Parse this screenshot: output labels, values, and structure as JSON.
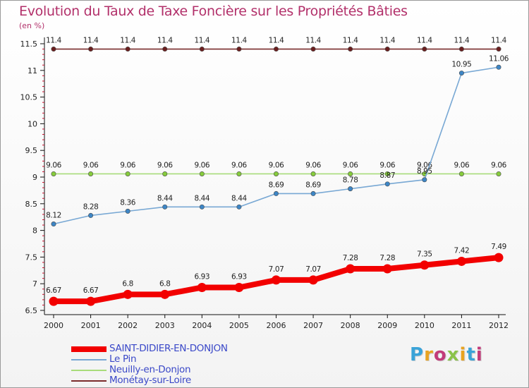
{
  "title": "Evolution du Taux de Taxe Foncière sur les Propriétés Bâties",
  "unit": "(en %)",
  "brand": {
    "text": "Proxiti",
    "colors": [
      "#3aa3d8",
      "#e8a321",
      "#c23b7a",
      "#8bc34a",
      "#e8a321",
      "#3aa3d8",
      "#c23b7a"
    ]
  },
  "chart_data": {
    "type": "line",
    "title": "Evolution du Taux de Taxe Foncière sur les Propriétés Bâties",
    "ylabel": "(en %)",
    "xlabel": "",
    "ylim": [
      6.5,
      11.5
    ],
    "yticks": [
      "6.5",
      "7",
      "7.5",
      "8",
      "8.5",
      "9",
      "9.5",
      "10",
      "10.5",
      "11",
      "11.5"
    ],
    "categories": [
      "2000",
      "2001",
      "2002",
      "2003",
      "2004",
      "2005",
      "2006",
      "2007",
      "2008",
      "2009",
      "2010",
      "2011",
      "2012"
    ],
    "legend_position": "bottom-left",
    "series": [
      {
        "name": "Monétay-sur-Loire",
        "color": "#7a2c2c",
        "point_color": "#6b1f1f",
        "labels": [
          "11.4",
          "11.4",
          "11.4",
          "11.4",
          "11.4",
          "11.4",
          "11.4",
          "11.4",
          "11.4",
          "11.4",
          "11.4",
          "11.4",
          "11.4"
        ],
        "values": [
          11.4,
          11.4,
          11.4,
          11.4,
          11.4,
          11.4,
          11.4,
          11.4,
          11.4,
          11.4,
          11.4,
          11.4,
          11.4
        ]
      },
      {
        "name": "Neuilly-en-Donjon",
        "color": "#a8dc7a",
        "point_color": "#86cc3c",
        "labels": [
          "9.06",
          "9.06",
          "9.06",
          "9.06",
          "9.06",
          "9.06",
          "9.06",
          "9.06",
          "9.06",
          "9.06",
          "9.06",
          "9.06",
          "9.06"
        ],
        "values": [
          9.06,
          9.06,
          9.06,
          9.06,
          9.06,
          9.06,
          9.06,
          9.06,
          9.06,
          9.06,
          9.06,
          9.06,
          9.06
        ]
      },
      {
        "name": "Le Pin",
        "color": "#78a8d4",
        "point_color": "#3d86c6",
        "labels": [
          "8.12",
          "8.28",
          "8.36",
          "8.44",
          "8.44",
          "8.44",
          "8.69",
          "8.69",
          "8.78",
          "8.87",
          "8.95",
          "10.95",
          "11.06"
        ],
        "values": [
          8.12,
          8.28,
          8.36,
          8.44,
          8.44,
          8.44,
          8.69,
          8.69,
          8.78,
          8.87,
          8.95,
          10.95,
          11.06
        ]
      },
      {
        "name": "SAINT-DIDIER-EN-DONJON",
        "color": "#f20000",
        "point_color": "#f20000",
        "labels": [
          "6.67",
          "6.67",
          "6.8",
          "6.8",
          "6.93",
          "6.93",
          "7.07",
          "7.07",
          "7.28",
          "7.28",
          "7.35",
          "7.42",
          "7.49"
        ],
        "values": [
          6.67,
          6.67,
          6.8,
          6.8,
          6.93,
          6.93,
          7.07,
          7.07,
          7.28,
          7.28,
          7.35,
          7.42,
          7.49
        ]
      }
    ]
  }
}
